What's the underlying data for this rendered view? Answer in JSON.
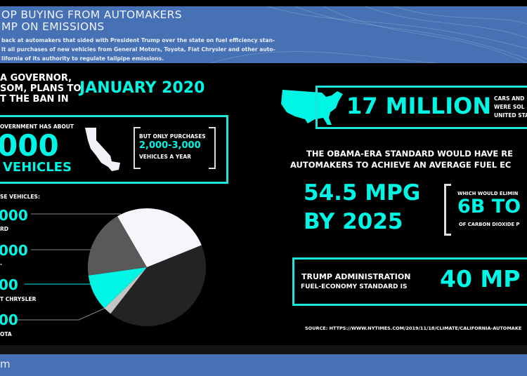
{
  "header": {
    "title_line1": "OP BUYING FROM AUTOMAKERS",
    "title_line2": "MP ON EMISSIONS",
    "body_line1": "back at automakers that sided with President Trump over the state on fuel efficiency stan-",
    "body_line2": "lt all purchases of new vehicles from General Motors, Toyota, Fiat Chrysler and other auto-",
    "body_line3": "lifornia of its authority to regulate tailpipe emissions."
  },
  "governor": {
    "line1": "A GOVERNOR,",
    "line2": "SOM, PLANS TO",
    "line3": "T THE BAN IN",
    "date": "JANUARY 2020"
  },
  "fleet": {
    "label": "OVERNMENT HAS ABOUT",
    "number": "000",
    "unit": "VEHICLES",
    "purchases_label": "BUT ONLY PURCHASES",
    "purchases_value": "2,000-3,000",
    "purchases_unit": "VEHICLES A YEAR"
  },
  "breakdown": {
    "heading": "SE VEHICLES:",
    "items": [
      {
        "value": "000",
        "label": "RD"
      },
      {
        "value": "000",
        "label": "-"
      },
      {
        "value": "00",
        "label": "T CHRYSLER"
      },
      {
        "value": "00",
        "label": "OTA"
      }
    ]
  },
  "chart_data": {
    "type": "pie",
    "slices": [
      {
        "name": "white",
        "value": 98,
        "color": "#f7f5fb"
      },
      {
        "name": "dark",
        "value": 150,
        "color": "#232323"
      },
      {
        "name": "light-gray",
        "value": 8,
        "color": "#c4c4c4"
      },
      {
        "name": "cyan",
        "value": 36,
        "color": "#00f5e4"
      },
      {
        "name": "gray",
        "value": 68,
        "color": "#595959"
      }
    ],
    "start_angle": -30
  },
  "sales": {
    "number": "17 MILLION",
    "line1": "CARS AND",
    "line2": "WERE SOL",
    "line3": "UNITED STA"
  },
  "obama": {
    "line1": "THE OBAMA-ERA STANDARD WOULD HAVE RE",
    "line2": "AUTOMAKERS TO ACHIEVE AN AVERAGE FUEL EC",
    "mpg": "54.5 MPG",
    "year": "BY 2025",
    "elim_label": "WHICH WOULD ELIMIN",
    "elim_value": "6B TO",
    "elim_unit": "OF CARBON DIOXIDE P"
  },
  "trump": {
    "line1": "TRUMP ADMINISTRATION",
    "line2": "FUEL-ECONOMY STANDARD IS",
    "value": "40 MP"
  },
  "source": "SOURCE: HTTPS://WWW.NYTIMES.COM/2019/11/18/CLIMATE/CALIFORNIA-AUTOMAKE",
  "footer": {
    "left": "m"
  },
  "colors": {
    "accent": "#00f5e4",
    "header_bg": "#4671b4"
  }
}
